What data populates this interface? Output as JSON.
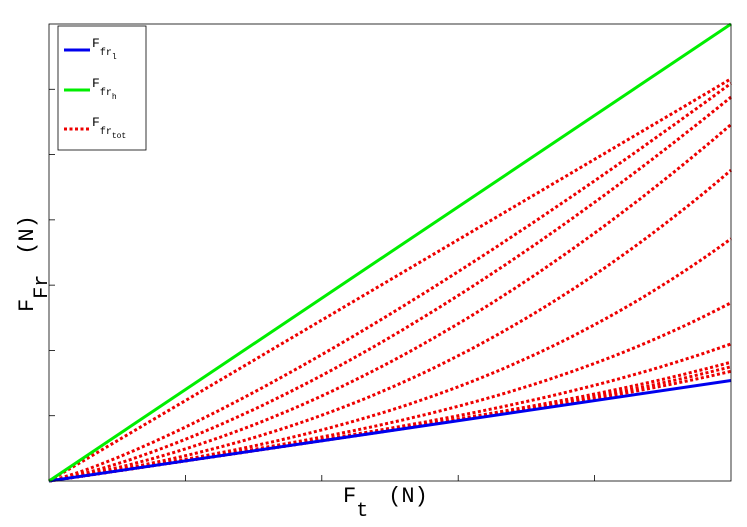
{
  "chart_data": {
    "type": "line",
    "title": "",
    "xlabel": {
      "base": "F",
      "sub": "t",
      "unit": "(N)"
    },
    "ylabel": {
      "base": "F",
      "sub": "Fr",
      "unit": "(N)"
    },
    "xlim": [
      0,
      1
    ],
    "ylim": [
      0,
      1
    ],
    "x_tick_count": 5,
    "y_tick_count": 7,
    "grid": false,
    "legend_position": "top-left",
    "legend": [
      {
        "base": "F",
        "sub": "fr",
        "subsub": "l",
        "color": "#0000ee",
        "style": "solid"
      },
      {
        "base": "F",
        "sub": "fr",
        "subsub": "h",
        "color": "#00ee00",
        "style": "solid"
      },
      {
        "base": "F",
        "sub": "fr",
        "subsub": "tot",
        "color": "#ee0000",
        "style": "dotted"
      }
    ],
    "series": [
      {
        "group": "low",
        "color": "#0000ee",
        "style": "solid",
        "x": [
          0,
          1
        ],
        "y": [
          0,
          0.22
        ]
      },
      {
        "group": "high",
        "color": "#00ee00",
        "style": "solid",
        "x": [
          0,
          1
        ],
        "y": [
          0,
          1.0
        ]
      },
      {
        "group": "total",
        "color": "#ee0000",
        "style": "dotted",
        "curvature": 0.0,
        "end": 0.88
      },
      {
        "group": "total",
        "color": "#ee0000",
        "style": "dotted",
        "curvature": 0.35,
        "end": 0.87
      },
      {
        "group": "total",
        "color": "#ee0000",
        "style": "dotted",
        "curvature": 0.6,
        "end": 0.84
      },
      {
        "group": "total",
        "color": "#ee0000",
        "style": "dotted",
        "curvature": 0.9,
        "end": 0.78
      },
      {
        "group": "total",
        "color": "#ee0000",
        "style": "dotted",
        "curvature": 1.3,
        "end": 0.68
      },
      {
        "group": "total",
        "color": "#ee0000",
        "style": "dotted",
        "curvature": 1.8,
        "end": 0.53
      },
      {
        "group": "total",
        "color": "#ee0000",
        "style": "dotted",
        "curvature": 2.3,
        "end": 0.39
      },
      {
        "group": "total",
        "color": "#ee0000",
        "style": "dotted",
        "curvature": 2.9,
        "end": 0.3
      },
      {
        "group": "total",
        "color": "#ee0000",
        "style": "dotted",
        "curvature": 3.6,
        "end": 0.26
      },
      {
        "group": "total",
        "color": "#ee0000",
        "style": "dotted",
        "curvature": 4.5,
        "end": 0.25
      },
      {
        "group": "total",
        "color": "#ee0000",
        "style": "dotted",
        "curvature": 5.5,
        "end": 0.24
      }
    ]
  }
}
